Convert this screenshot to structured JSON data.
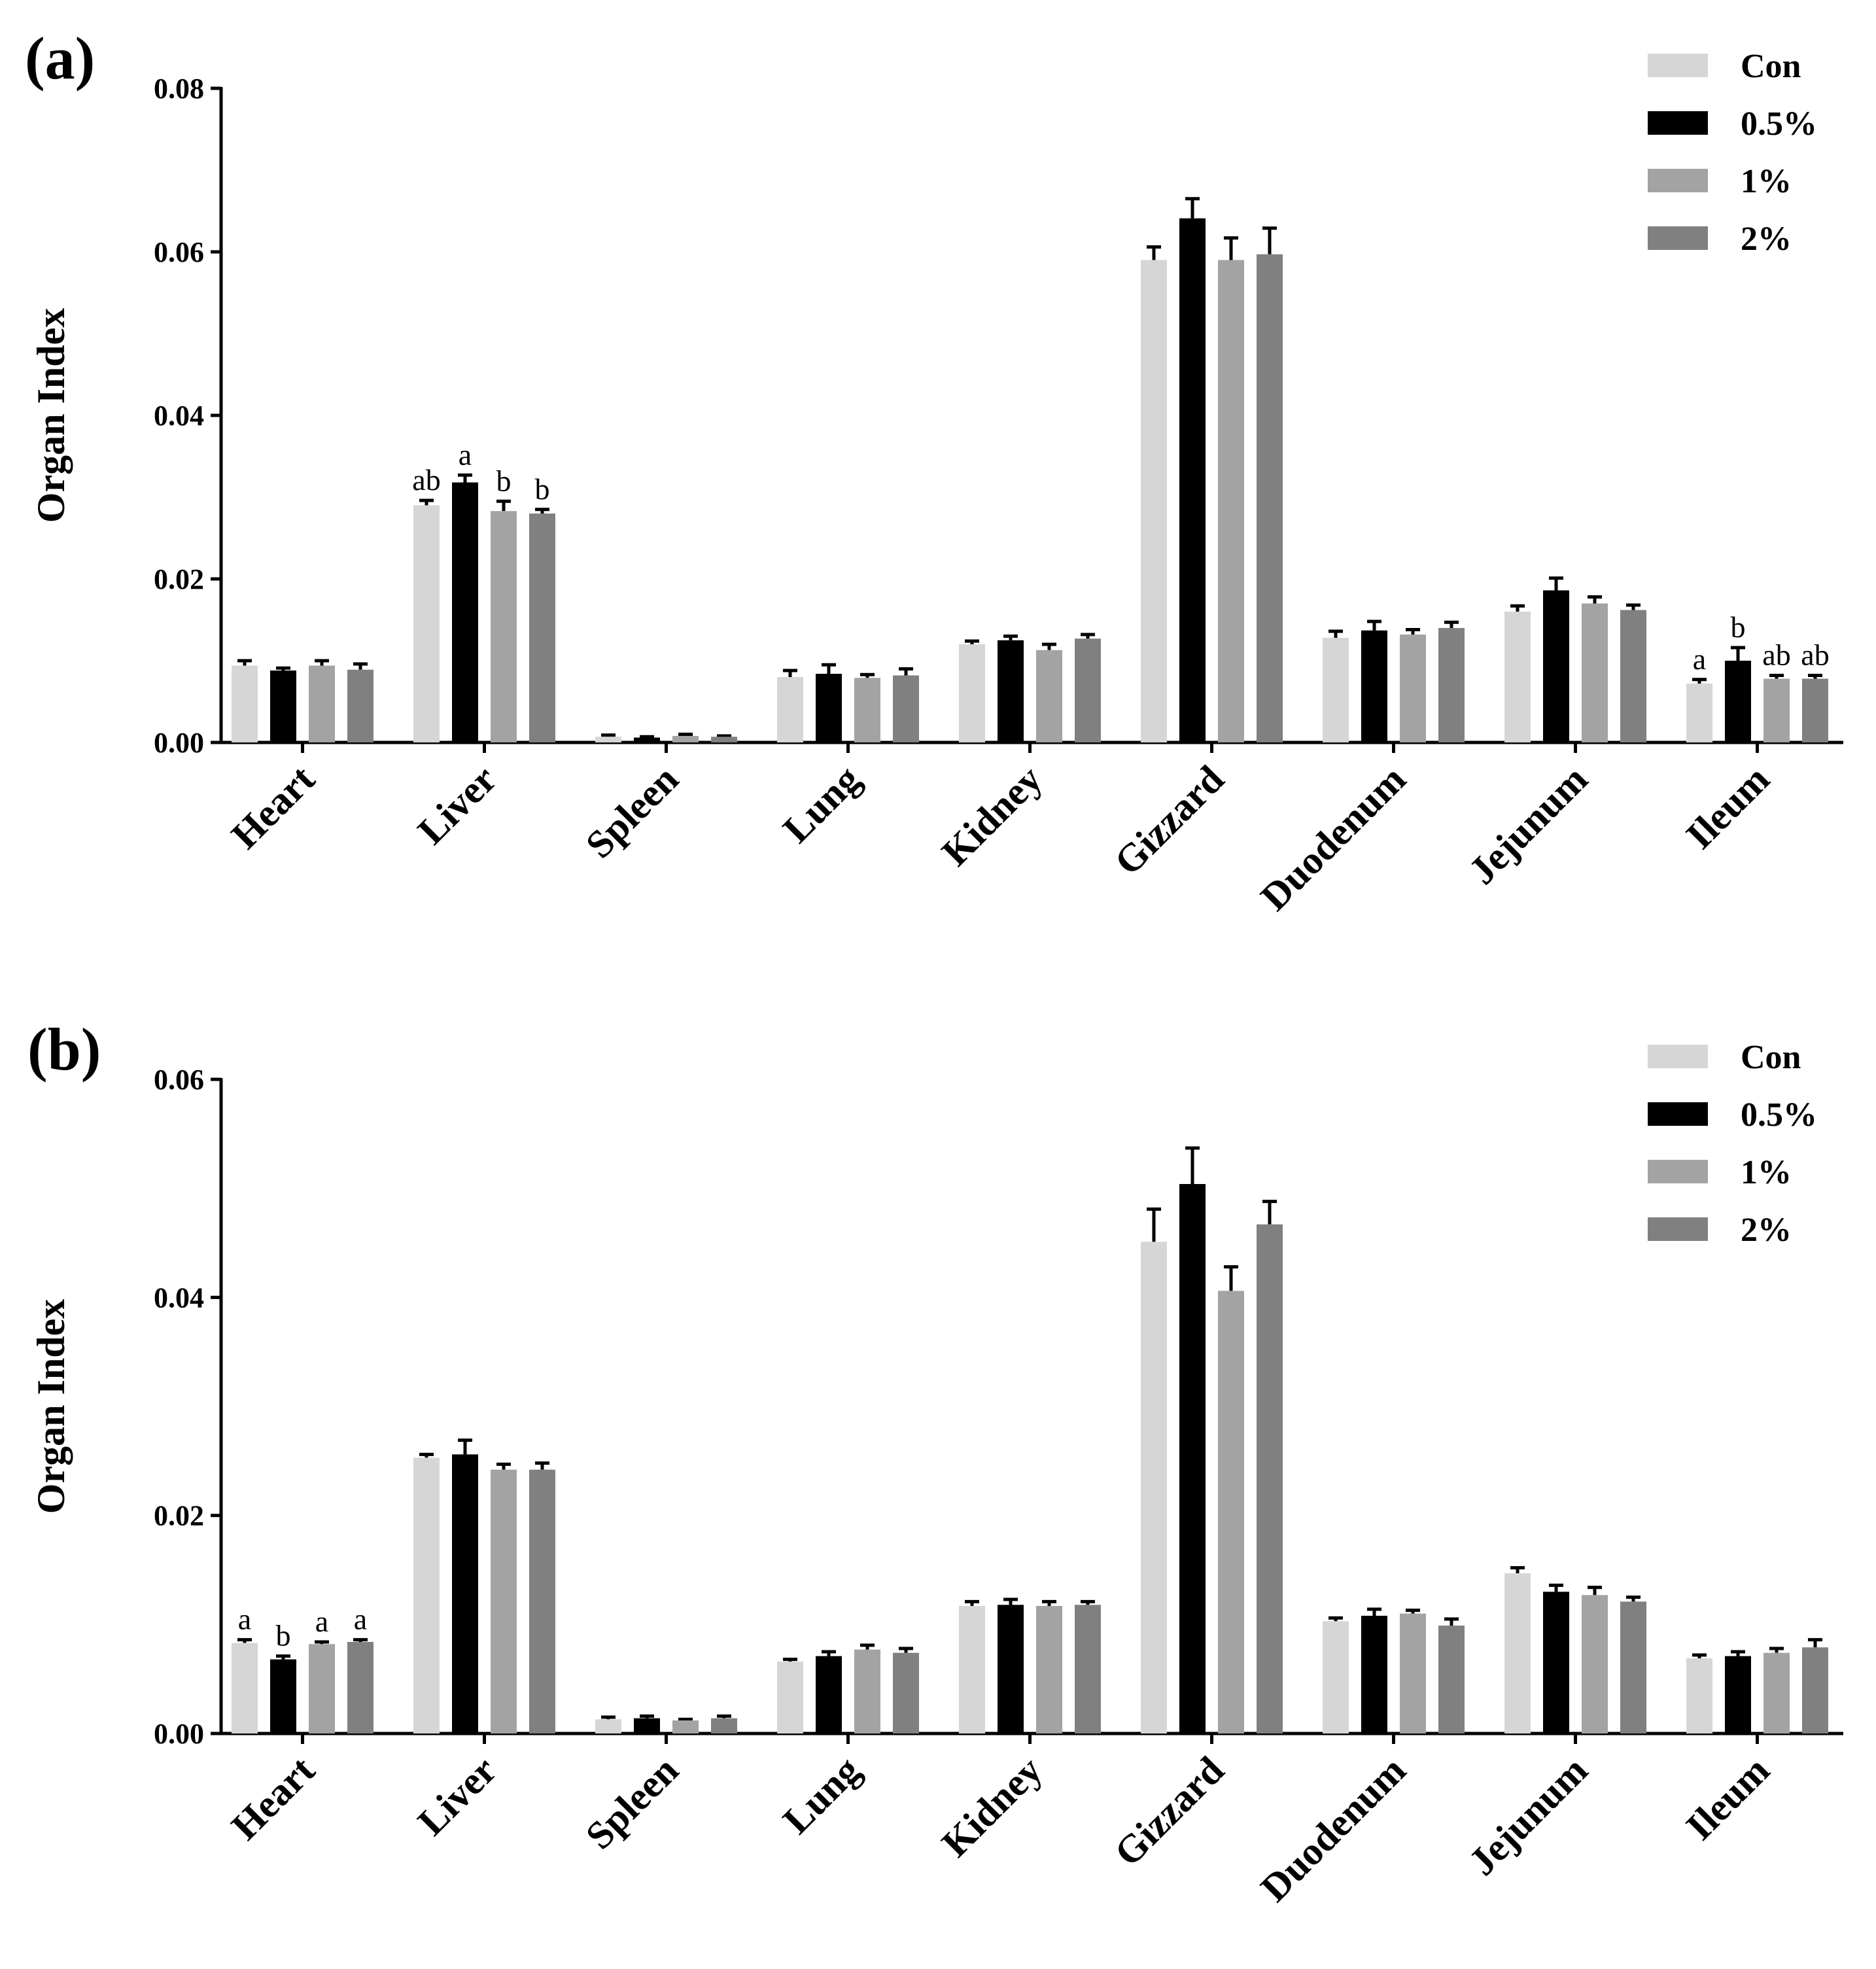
{
  "figure": {
    "panels": [
      {
        "label": "(a)"
      },
      {
        "label": "(b)"
      }
    ]
  },
  "chart_data": [
    {
      "type": "bar",
      "panel": "(a)",
      "title": "",
      "xlabel": "",
      "ylabel": "Organ Index",
      "ylim": [
        0,
        0.08
      ],
      "yticks": [
        "0.00",
        "0.02",
        "0.04",
        "0.06",
        "0.08"
      ],
      "categories": [
        "Heart",
        "Liver",
        "Spleen",
        "Lung",
        "Kidney",
        "Gizzard",
        "Duodenum",
        "Jejunum",
        "Ileum"
      ],
      "legend_position": "top-right",
      "series": [
        {
          "name": "Con",
          "color": "#d6d6d6",
          "values": [
            0.0094,
            0.029,
            0.0007,
            0.008,
            0.012,
            0.059,
            0.0128,
            0.016,
            0.0072
          ],
          "errors": [
            0.0006,
            0.0006,
            0.0002,
            0.0008,
            0.0004,
            0.0016,
            0.0008,
            0.0007,
            0.0005
          ]
        },
        {
          "name": "0.5%",
          "color": "#000000",
          "values": [
            0.0088,
            0.0318,
            0.0006,
            0.0084,
            0.0125,
            0.0641,
            0.0137,
            0.0186,
            0.01
          ],
          "errors": [
            0.0003,
            0.0009,
            0.0001,
            0.0011,
            0.0005,
            0.0024,
            0.0011,
            0.0015,
            0.0016
          ]
        },
        {
          "name": "1%",
          "color": "#a3a3a3",
          "values": [
            0.0094,
            0.0283,
            0.0008,
            0.0079,
            0.0113,
            0.059,
            0.0132,
            0.017,
            0.0078
          ],
          "errors": [
            0.0006,
            0.0012,
            0.0002,
            0.0004,
            0.0007,
            0.0027,
            0.0006,
            0.0008,
            0.0004
          ]
        },
        {
          "name": "2%",
          "color": "#808080",
          "values": [
            0.0089,
            0.028,
            0.0007,
            0.0082,
            0.0127,
            0.0597,
            0.014,
            0.0162,
            0.0078
          ],
          "errors": [
            0.0007,
            0.0005,
            0.0001,
            0.0008,
            0.0005,
            0.0032,
            0.0007,
            0.0006,
            0.0004
          ]
        }
      ],
      "annotations": [
        {
          "category": "Liver",
          "series": "Con",
          "text": "ab"
        },
        {
          "category": "Liver",
          "series": "0.5%",
          "text": "a"
        },
        {
          "category": "Liver",
          "series": "1%",
          "text": "b"
        },
        {
          "category": "Liver",
          "series": "2%",
          "text": "b"
        },
        {
          "category": "Ileum",
          "series": "Con",
          "text": "a"
        },
        {
          "category": "Ileum",
          "series": "0.5%",
          "text": "b"
        },
        {
          "category": "Ileum",
          "series": "1%",
          "text": "ab"
        },
        {
          "category": "Ileum",
          "series": "2%",
          "text": "ab"
        }
      ]
    },
    {
      "type": "bar",
      "panel": "(b)",
      "title": "",
      "xlabel": "",
      "ylabel": "Organ Index",
      "ylim": [
        0,
        0.06
      ],
      "yticks": [
        "0.00",
        "0.02",
        "0.04",
        "0.06"
      ],
      "categories": [
        "Heart",
        "Liver",
        "Spleen",
        "Lung",
        "Kidney",
        "Gizzard",
        "Duodenum",
        "Jejunum",
        "Ileum"
      ],
      "legend_position": "top-right",
      "series": [
        {
          "name": "Con",
          "color": "#d6d6d6",
          "values": [
            0.0083,
            0.0253,
            0.0013,
            0.0066,
            0.0117,
            0.0451,
            0.0103,
            0.0147,
            0.0069
          ],
          "errors": [
            0.0003,
            0.0003,
            0.0002,
            0.0002,
            0.0004,
            0.003,
            0.0003,
            0.0005,
            0.0003
          ]
        },
        {
          "name": "0.5%",
          "color": "#000000",
          "values": [
            0.0068,
            0.0256,
            0.0014,
            0.0071,
            0.0118,
            0.0504,
            0.0108,
            0.013,
            0.0071
          ],
          "errors": [
            0.0003,
            0.0013,
            0.0002,
            0.0004,
            0.0005,
            0.0033,
            0.0006,
            0.0006,
            0.0004
          ]
        },
        {
          "name": "1%",
          "color": "#a3a3a3",
          "values": [
            0.0082,
            0.0242,
            0.0012,
            0.0077,
            0.0117,
            0.0406,
            0.011,
            0.0127,
            0.0074
          ],
          "errors": [
            0.0002,
            0.0005,
            0.0001,
            0.0004,
            0.0004,
            0.0022,
            0.0003,
            0.0007,
            0.0004
          ]
        },
        {
          "name": "2%",
          "color": "#808080",
          "values": [
            0.0084,
            0.0242,
            0.0014,
            0.0074,
            0.0118,
            0.0467,
            0.0099,
            0.0121,
            0.0079
          ],
          "errors": [
            0.0002,
            0.0006,
            0.0002,
            0.0004,
            0.0003,
            0.0021,
            0.0006,
            0.0004,
            0.0007
          ]
        }
      ],
      "annotations": [
        {
          "category": "Heart",
          "series": "Con",
          "text": "a"
        },
        {
          "category": "Heart",
          "series": "0.5%",
          "text": "b"
        },
        {
          "category": "Heart",
          "series": "1%",
          "text": "a"
        },
        {
          "category": "Heart",
          "series": "2%",
          "text": "a"
        }
      ]
    }
  ]
}
